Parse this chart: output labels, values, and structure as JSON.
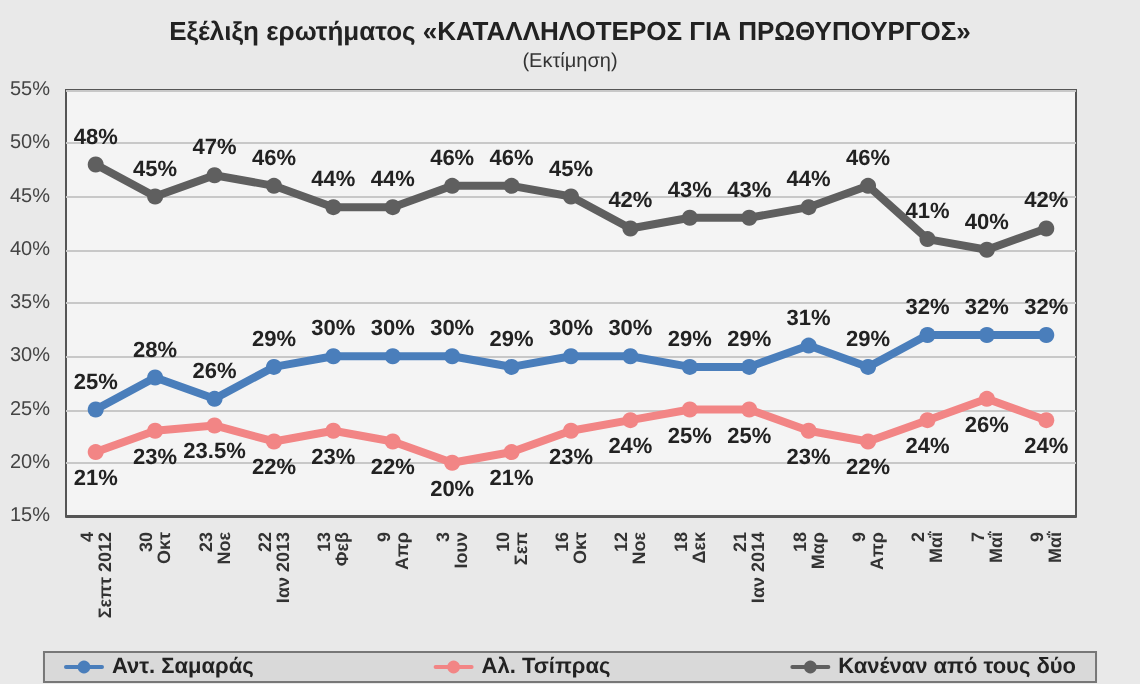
{
  "chart_data": {
    "type": "line",
    "title": "Εξέλιξη ερωτήματος «ΚΑΤΑΛΛΗΛΟΤΕΡΟΣ ΓΙΑ ΠΡΩΘΥΠΟΥΡΓΟΣ»",
    "subtitle": "(Εκτίμηση)",
    "categories": [
      "4 Σεπτ 2012",
      "30 Οκτ",
      "23 Νοε",
      "22 Ιαν 2013",
      "13 Φεβ",
      "9 Απρ",
      "3 Ιουν",
      "10 Σεπ",
      "16 Οκτ",
      "12 Νοε",
      "18 Δεκ",
      "21 Ιαν 2014",
      "18 Μαρ",
      "9 Απρ",
      "2 Μαΐ",
      "7 Μαΐ",
      "9 Μαΐ"
    ],
    "series": [
      {
        "name": "Αντ. Σαμαράς",
        "color": "#4a7ebb",
        "values": [
          25,
          28,
          26,
          29,
          30,
          30,
          30,
          29,
          30,
          30,
          29,
          29,
          31,
          29,
          32,
          32,
          32
        ],
        "value_labels": [
          "25%",
          "28%",
          "26%",
          "29%",
          "30%",
          "30%",
          "30%",
          "29%",
          "30%",
          "30%",
          "29%",
          "29%",
          "31%",
          "29%",
          "32%",
          "32%",
          "32%"
        ]
      },
      {
        "name": "Αλ. Τσίπρας",
        "color": "#f28585",
        "values": [
          21,
          23,
          23.5,
          22,
          23,
          22,
          20,
          21,
          23,
          24,
          25,
          25,
          23,
          22,
          24,
          26,
          24
        ],
        "value_labels": [
          "21%",
          "23%",
          "23.5%",
          "22%",
          "23%",
          "22%",
          "20%",
          "21%",
          "23%",
          "24%",
          "25%",
          "25%",
          "23%",
          "22%",
          "24%",
          "26%",
          "24%"
        ]
      },
      {
        "name": "Κανέναν από τους δύο",
        "color": "#5f5f5f",
        "values": [
          48,
          45,
          47,
          46,
          44,
          44,
          46,
          46,
          45,
          42,
          43,
          43,
          44,
          46,
          41,
          40,
          42
        ],
        "value_labels": [
          "48%",
          "45%",
          "47%",
          "46%",
          "44%",
          "44%",
          "46%",
          "46%",
          "45%",
          "42%",
          "43%",
          "43%",
          "44%",
          "46%",
          "41%",
          "40%",
          "42%"
        ]
      }
    ],
    "ylim": [
      15,
      55
    ],
    "yticks": [
      {
        "value": 15,
        "label": "15%"
      },
      {
        "value": 20,
        "label": "20%"
      },
      {
        "value": 25,
        "label": "25%"
      },
      {
        "value": 30,
        "label": "30%"
      },
      {
        "value": 35,
        "label": "35%"
      },
      {
        "value": 40,
        "label": "40%"
      },
      {
        "value": 45,
        "label": "45%"
      },
      {
        "value": 50,
        "label": "50%"
      },
      {
        "value": 55,
        "label": "55%"
      }
    ],
    "grid": "y",
    "legend": "bottom",
    "marker": "circle",
    "line_style": "solid"
  }
}
